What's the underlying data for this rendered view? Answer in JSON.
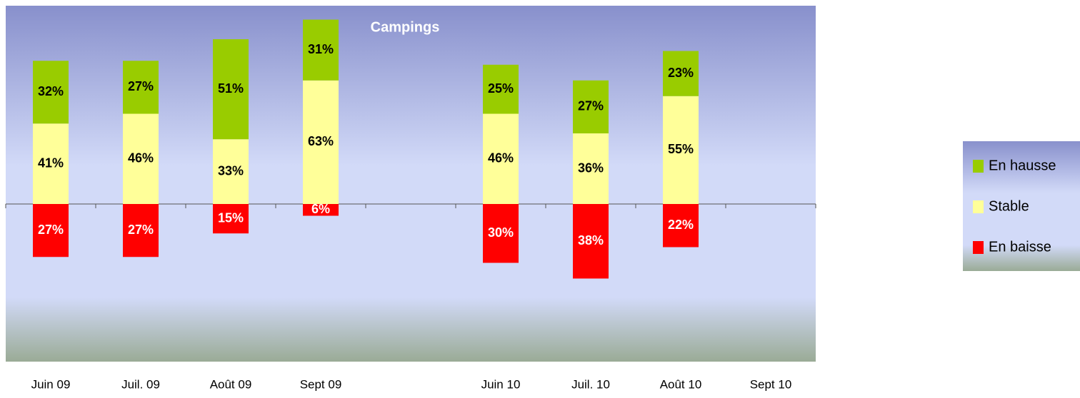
{
  "chart_data": {
    "type": "bar",
    "stacked": true,
    "title": "Campings",
    "categories": [
      "Juin 09",
      "Juil. 09",
      "Août 09",
      "Sept 09",
      null,
      "Juin 10",
      "Juil. 10",
      "Août 10",
      "Sept 10"
    ],
    "series": [
      {
        "name": "En hausse",
        "color": "#99cc00",
        "label_color": "#000000",
        "values": [
          32,
          27,
          51,
          31,
          null,
          25,
          27,
          23,
          null
        ],
        "value_labels": [
          "32%",
          "27%",
          "51%",
          "31%",
          null,
          "25%",
          "27%",
          "23%",
          null
        ]
      },
      {
        "name": "Stable",
        "color": "#ffff99",
        "label_color": "#000000",
        "values": [
          41,
          46,
          33,
          63,
          null,
          46,
          36,
          55,
          null
        ],
        "value_labels": [
          "41%",
          "46%",
          "33%",
          "63%",
          null,
          "46%",
          "36%",
          "55%",
          null
        ]
      },
      {
        "name": "En baisse",
        "color": "#ff0000",
        "label_color": "#ffffff",
        "values": [
          -27,
          -27,
          -15,
          -6,
          null,
          -30,
          -38,
          -22,
          null
        ],
        "value_labels": [
          "27%",
          "27%",
          "15%",
          "6%",
          null,
          "30%",
          "38%",
          "22%",
          null
        ]
      }
    ],
    "ylim": [
      -80,
      100
    ],
    "legend": "right"
  }
}
